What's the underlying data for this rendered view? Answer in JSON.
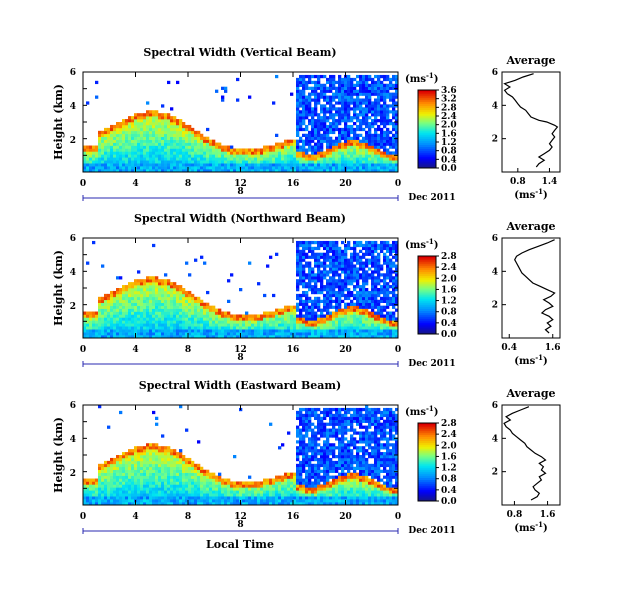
{
  "panels": [
    {
      "title": "Spectral Width (Vertical Beam)",
      "colorbar_ticks": [
        "0.0",
        "0.4",
        "0.8",
        "1.2",
        "1.6",
        "2.0",
        "2.4",
        "2.8",
        "3.2",
        "3.6"
      ],
      "profile_xticks": [
        "0.8",
        "1.4"
      ],
      "profile_x": [
        0.5,
        1.6
      ],
      "profile": [
        [
          1.15,
          0.3
        ],
        [
          1.2,
          0.5
        ],
        [
          1.3,
          0.7
        ],
        [
          1.2,
          0.9
        ],
        [
          1.3,
          1.1
        ],
        [
          1.4,
          1.3
        ],
        [
          1.45,
          1.5
        ],
        [
          1.4,
          1.7
        ],
        [
          1.45,
          1.9
        ],
        [
          1.5,
          2.1
        ],
        [
          1.45,
          2.3
        ],
        [
          1.5,
          2.5
        ],
        [
          1.55,
          2.7
        ],
        [
          1.5,
          2.8
        ],
        [
          1.35,
          3.0
        ],
        [
          1.2,
          3.1
        ],
        [
          1.05,
          3.3
        ],
        [
          1.0,
          3.5
        ],
        [
          0.95,
          3.7
        ],
        [
          0.85,
          3.9
        ],
        [
          0.8,
          4.1
        ],
        [
          0.75,
          4.3
        ],
        [
          0.7,
          4.5
        ],
        [
          0.6,
          4.7
        ],
        [
          0.55,
          4.9
        ],
        [
          0.65,
          5.1
        ],
        [
          0.55,
          5.3
        ],
        [
          0.75,
          5.5
        ],
        [
          0.9,
          5.7
        ],
        [
          1.1,
          5.9
        ]
      ]
    },
    {
      "title": "Spectral Width (Northward Beam)",
      "colorbar_ticks": [
        "0.0",
        "0.4",
        "0.8",
        "1.2",
        "1.6",
        "2.0",
        "2.4",
        "2.8"
      ],
      "profile_xticks": [
        "0.4",
        "1.6"
      ],
      "profile_x": [
        0.2,
        1.8
      ],
      "profile": [
        [
          1.5,
          0.3
        ],
        [
          1.4,
          0.5
        ],
        [
          1.55,
          0.7
        ],
        [
          1.45,
          0.9
        ],
        [
          1.6,
          1.1
        ],
        [
          1.5,
          1.3
        ],
        [
          1.3,
          1.5
        ],
        [
          1.4,
          1.7
        ],
        [
          1.6,
          1.9
        ],
        [
          1.5,
          2.1
        ],
        [
          1.35,
          2.3
        ],
        [
          1.55,
          2.5
        ],
        [
          1.65,
          2.7
        ],
        [
          1.45,
          2.9
        ],
        [
          1.25,
          3.1
        ],
        [
          1.05,
          3.3
        ],
        [
          0.95,
          3.5
        ],
        [
          0.85,
          3.7
        ],
        [
          0.75,
          3.9
        ],
        [
          0.7,
          4.1
        ],
        [
          0.65,
          4.3
        ],
        [
          0.6,
          4.5
        ],
        [
          0.55,
          4.7
        ],
        [
          0.6,
          4.9
        ],
        [
          0.75,
          5.1
        ],
        [
          0.95,
          5.3
        ],
        [
          1.2,
          5.5
        ],
        [
          1.45,
          5.7
        ],
        [
          1.65,
          5.9
        ]
      ]
    },
    {
      "title": "Spectral Width (Eastward Beam)",
      "colorbar_ticks": [
        "0.0",
        "0.4",
        "0.8",
        "1.2",
        "1.6",
        "2.0",
        "2.4",
        "2.8"
      ],
      "profile_xticks": [
        "0.8",
        "1.6"
      ],
      "profile_x": [
        0.5,
        1.9
      ],
      "profile": [
        [
          1.2,
          0.3
        ],
        [
          1.35,
          0.5
        ],
        [
          1.4,
          0.7
        ],
        [
          1.3,
          0.9
        ],
        [
          1.25,
          1.1
        ],
        [
          1.35,
          1.3
        ],
        [
          1.45,
          1.5
        ],
        [
          1.4,
          1.7
        ],
        [
          1.55,
          1.9
        ],
        [
          1.45,
          2.1
        ],
        [
          1.5,
          2.3
        ],
        [
          1.4,
          2.5
        ],
        [
          1.55,
          2.7
        ],
        [
          1.45,
          2.9
        ],
        [
          1.3,
          3.1
        ],
        [
          1.2,
          3.3
        ],
        [
          1.1,
          3.5
        ],
        [
          1.05,
          3.7
        ],
        [
          0.95,
          3.9
        ],
        [
          0.85,
          4.1
        ],
        [
          0.75,
          4.3
        ],
        [
          0.7,
          4.5
        ],
        [
          0.6,
          4.7
        ],
        [
          0.55,
          4.9
        ],
        [
          0.7,
          5.1
        ],
        [
          0.6,
          5.3
        ],
        [
          0.75,
          5.5
        ],
        [
          0.95,
          5.7
        ],
        [
          1.15,
          5.9
        ]
      ]
    }
  ],
  "common": {
    "ylabel": "Height (km)",
    "yticks": [
      "2",
      "4",
      "6"
    ],
    "xticks": [
      "0",
      "4",
      "8",
      "12",
      "16",
      "20",
      "0"
    ],
    "date_marker": "8",
    "date_label": "Dec 2011",
    "unit_label": "(ms",
    "unit_sup": "-1",
    "unit_close": ")",
    "profile_title": "Average",
    "profile_yticks": [
      "2",
      "4",
      "6"
    ],
    "xlabel": "Local Time"
  },
  "chart_data": [
    {
      "type": "heatmap",
      "title": "Spectral Width (Vertical Beam)",
      "xlabel": "Local Time",
      "ylabel": "Height (km)",
      "x_range_hours": [
        0,
        24
      ],
      "y_range_km": [
        0,
        6
      ],
      "colorbar_range": [
        0.0,
        3.6
      ],
      "colorbar_unit": "ms-1",
      "date": "Dec 2011"
    },
    {
      "type": "line",
      "title": "Average",
      "xlabel": "(ms-1)",
      "ylabel": "",
      "x": [
        1.15,
        1.2,
        1.3,
        1.2,
        1.3,
        1.4,
        1.45,
        1.4,
        1.45,
        1.5,
        1.45,
        1.5,
        1.55,
        1.5,
        1.35,
        1.2,
        1.05,
        1.0,
        0.95,
        0.85,
        0.8,
        0.75,
        0.7,
        0.6,
        0.55,
        0.65,
        0.55,
        0.75,
        0.9,
        1.1
      ],
      "y": [
        0.3,
        0.5,
        0.7,
        0.9,
        1.1,
        1.3,
        1.5,
        1.7,
        1.9,
        2.1,
        2.3,
        2.5,
        2.7,
        2.8,
        3.0,
        3.1,
        3.3,
        3.5,
        3.7,
        3.9,
        4.1,
        4.3,
        4.5,
        4.7,
        4.9,
        5.1,
        5.3,
        5.5,
        5.7,
        5.9
      ],
      "xlim": [
        0.5,
        1.6
      ],
      "ylim": [
        0,
        6
      ]
    },
    {
      "type": "heatmap",
      "title": "Spectral Width (Northward Beam)",
      "xlabel": "Local Time",
      "ylabel": "Height (km)",
      "x_range_hours": [
        0,
        24
      ],
      "y_range_km": [
        0,
        6
      ],
      "colorbar_range": [
        0.0,
        2.8
      ],
      "colorbar_unit": "ms-1",
      "date": "Dec 2011"
    },
    {
      "type": "line",
      "title": "Average",
      "xlabel": "(ms-1)",
      "ylabel": "",
      "x": [
        1.5,
        1.4,
        1.55,
        1.45,
        1.6,
        1.5,
        1.3,
        1.4,
        1.6,
        1.5,
        1.35,
        1.55,
        1.65,
        1.45,
        1.25,
        1.05,
        0.95,
        0.85,
        0.75,
        0.7,
        0.65,
        0.6,
        0.55,
        0.6,
        0.75,
        0.95,
        1.2,
        1.45,
        1.65
      ],
      "y": [
        0.3,
        0.5,
        0.7,
        0.9,
        1.1,
        1.3,
        1.5,
        1.7,
        1.9,
        2.1,
        2.3,
        2.5,
        2.7,
        2.9,
        3.1,
        3.3,
        3.5,
        3.7,
        3.9,
        4.1,
        4.3,
        4.5,
        4.7,
        4.9,
        5.1,
        5.3,
        5.5,
        5.7,
        5.9
      ],
      "xlim": [
        0.2,
        1.8
      ],
      "ylim": [
        0,
        6
      ]
    },
    {
      "type": "heatmap",
      "title": "Spectral Width (Eastward Beam)",
      "xlabel": "Local Time",
      "ylabel": "Height (km)",
      "x_range_hours": [
        0,
        24
      ],
      "y_range_km": [
        0,
        6
      ],
      "colorbar_range": [
        0.0,
        2.8
      ],
      "colorbar_unit": "ms-1",
      "date": "Dec 2011"
    },
    {
      "type": "line",
      "title": "Average",
      "xlabel": "(ms-1)",
      "ylabel": "",
      "x": [
        1.2,
        1.35,
        1.4,
        1.3,
        1.25,
        1.35,
        1.45,
        1.4,
        1.55,
        1.45,
        1.5,
        1.4,
        1.55,
        1.45,
        1.3,
        1.2,
        1.1,
        1.05,
        0.95,
        0.85,
        0.75,
        0.7,
        0.6,
        0.55,
        0.7,
        0.6,
        0.75,
        0.95,
        1.15
      ],
      "y": [
        0.3,
        0.5,
        0.7,
        0.9,
        1.1,
        1.3,
        1.5,
        1.7,
        1.9,
        2.1,
        2.3,
        2.5,
        2.7,
        2.9,
        3.1,
        3.3,
        3.5,
        3.7,
        3.9,
        4.1,
        4.3,
        4.5,
        4.7,
        4.9,
        5.1,
        5.3,
        5.5,
        5.7,
        5.9
      ],
      "xlim": [
        0.5,
        1.9
      ],
      "ylim": [
        0,
        6
      ]
    }
  ]
}
